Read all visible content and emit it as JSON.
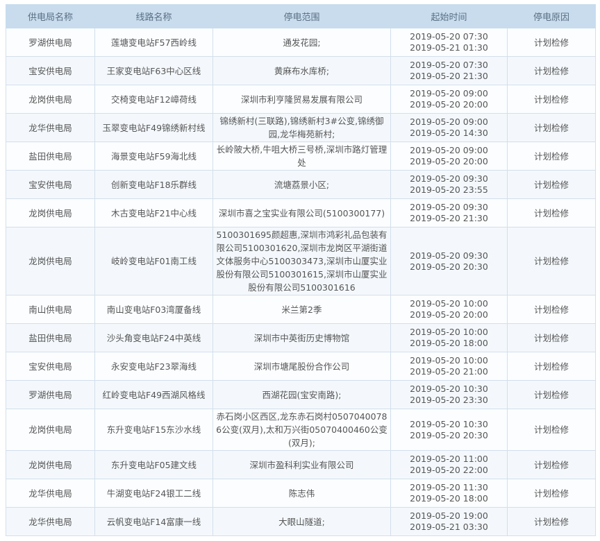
{
  "headers": [
    "供电局名称",
    "线路名称",
    "停电范围",
    "起始时间",
    "停电原因"
  ],
  "rows": [
    {
      "bureau": "罗湖供电局",
      "line": "莲塘变电站F57西岭线",
      "range": "通发花园;",
      "start": "2019-05-20 07:30",
      "end": "2019-05-21 01:30",
      "reason": "计划检修"
    },
    {
      "bureau": "宝安供电局",
      "line": "王家变电站F63中心区线",
      "range": "黄麻布水库桥;",
      "start": "2019-05-20 07:30",
      "end": "2019-05-20 21:30",
      "reason": "计划检修"
    },
    {
      "bureau": "龙岗供电局",
      "line": "交椅变电站F12嶂荷线",
      "range": "深圳市利亨隆贸易发展有限公司",
      "start": "2019-05-20 09:00",
      "end": "2019-05-20 20:00",
      "reason": "计划检修"
    },
    {
      "bureau": "龙华供电局",
      "line": "玉翠变电站F49锦绣新村线",
      "range": "锦绣新村(三联路),锦绣新村3#公变,锦绣御园,龙华梅苑新村;",
      "start": "2019-05-20 09:00",
      "end": "2019-05-20 14:30",
      "reason": "计划检修"
    },
    {
      "bureau": "盐田供电局",
      "line": "海景变电站F59海北线",
      "range": "长岭陂大桥,牛咀大桥三号桥,深圳市路灯管理处",
      "start": "2019-05-20 09:00",
      "end": "2019-05-20 20:00",
      "reason": "计划检修"
    },
    {
      "bureau": "宝安供电局",
      "line": "创新变电站F18乐群线",
      "range": "流塘荔景小区;",
      "start": "2019-05-20 09:30",
      "end": "2019-05-20 23:55",
      "reason": "计划检修"
    },
    {
      "bureau": "龙岗供电局",
      "line": "木古变电站F21中心线",
      "range": "深圳市喜之宝实业有限公司(5100300177)",
      "start": "2019-05-20 09:30",
      "end": "2019-05-20 21:30",
      "reason": "计划检修"
    },
    {
      "bureau": "龙岗供电局",
      "line": "岐岭变电站F01南工线",
      "range": "5100301695颜超惠,深圳市鸿彩礼品包装有限公司5100301620,深圳市龙岗区平湖街道文体服务中心5100303473,深圳市山厦实业股份有限公司5100301615,深圳市山厦实业股份有限公司5100301616",
      "start": "2019-05-20 09:30",
      "end": "2019-05-20 20:30",
      "reason": "计划检修"
    },
    {
      "bureau": "南山供电局",
      "line": "南山变电站F03湾厦备线",
      "range": "米兰第2季",
      "start": "2019-05-20 10:00",
      "end": "2019-05-20 20:00",
      "reason": "计划检修"
    },
    {
      "bureau": "盐田供电局",
      "line": "沙头角变电站F24中英线",
      "range": "深圳市中英街历史博物馆",
      "start": "2019-05-20 10:00",
      "end": "2019-05-20 18:00",
      "reason": "计划检修"
    },
    {
      "bureau": "宝安供电局",
      "line": "永安变电站F23翠海线",
      "range": "深圳市塘尾股份合作公司",
      "start": "2019-05-20 10:00",
      "end": "2019-05-20 21:00",
      "reason": "计划检修"
    },
    {
      "bureau": "罗湖供电局",
      "line": "红岭变电站F49西湖风格线",
      "range": "西湖花园(宝安南路);",
      "start": "2019-05-20 10:30",
      "end": "2019-05-20 23:30",
      "reason": "计划检修"
    },
    {
      "bureau": "龙岗供电局",
      "line": "东升变电站F15东沙水线",
      "range": "赤石岗小区西区,龙东赤石岗村05070400786公变(双月),太和万兴街05070400460公变(双月);",
      "start": "2019-05-20 10:30",
      "end": "2019-05-20 20:30",
      "reason": "计划检修"
    },
    {
      "bureau": "龙岗供电局",
      "line": "东升变电站F05建文线",
      "range": "深圳市盈科利实业有限公司",
      "start": "2019-05-20 11:00",
      "end": "2019-05-20 22:00",
      "reason": "计划检修"
    },
    {
      "bureau": "龙华供电局",
      "line": "牛湖变电站F24银工二线",
      "range": "陈志伟",
      "start": "2019-05-20 11:30",
      "end": "2019-05-20 18:00",
      "reason": "计划检修"
    },
    {
      "bureau": "龙华供电局",
      "line": "云帆变电站F14富康一线",
      "range": "大眼山隧道;",
      "start": "2019-05-20 19:00",
      "end": "2019-05-21 03:30",
      "reason": "计划检修"
    }
  ]
}
